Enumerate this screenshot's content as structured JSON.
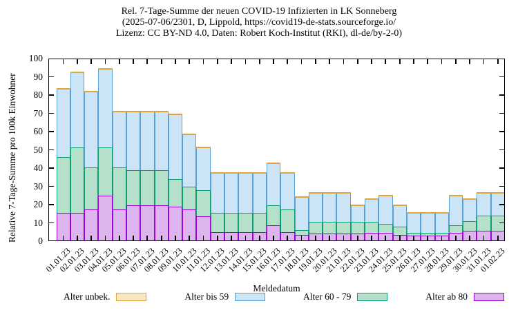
{
  "title": {
    "line1": "Rel. 7-Tage-Summe der neuen COVID-19 Infizierten in LK Sonneberg",
    "line2": "(2025-07-06/2301, D, Lippold, https://covid19-de-stats.sourceforge.io/",
    "line3": "Lizenz: CC BY-ND 4.0, Daten: Robert Koch-Institut (RKI), dl-de/by-2-0)"
  },
  "y_axis": {
    "label": "Relative 7-Tage-Summe pro 100k Einwohner",
    "min": 0,
    "max": 100,
    "tick_step": 10,
    "tick_labels": [
      "0",
      "10",
      "20",
      "30",
      "40",
      "50",
      "60",
      "70",
      "80",
      "90",
      "100"
    ]
  },
  "x_axis": {
    "label": "Meldedatum",
    "tick_labels": [
      "01.01.23",
      "02.01.23",
      "03.01.23",
      "04.01.23",
      "05.01.23",
      "06.01.23",
      "07.01.23",
      "08.01.23",
      "09.01.23",
      "10.01.23",
      "11.01.23",
      "12.01.23",
      "13.01.23",
      "14.01.23",
      "15.01.23",
      "16.01.23",
      "17.01.23",
      "18.01.23",
      "19.01.23",
      "20.01.23",
      "21.01.23",
      "22.01.23",
      "23.01.23",
      "24.01.23",
      "25.01.23",
      "26.01.23",
      "27.01.23",
      "28.01.23",
      "29.01.23",
      "30.01.23",
      "31.01.23",
      "01.02.23"
    ]
  },
  "legend": {
    "items": [
      {
        "label": "Alter unbek.",
        "fill": "#f9e7c2",
        "border": "#e2a33b"
      },
      {
        "label": "Alter bis 59",
        "fill": "#cbe4f6",
        "border": "#55a1d9"
      },
      {
        "label": "Alter 60 - 79",
        "fill": "#b5e0ca",
        "border": "#0b9e73"
      },
      {
        "label": "Alter ab 80",
        "fill": "#ddb5ee",
        "border": "#9804d1"
      }
    ]
  },
  "chart_data": {
    "type": "bar",
    "stacked": true,
    "title": "Rel. 7-Tage-Summe der neuen COVID-19 Infizierten in LK Sonneberg",
    "xlabel": "Meldedatum",
    "ylabel": "Relative 7-Tage-Summe pro 100k Einwohner",
    "ylim": [
      0,
      100
    ],
    "grid": false,
    "legend_position": "bottom",
    "note": "Values are cumulative stack tops per age group (per 100k inhabitants). 'Alter unbek.' is 0 every day and appears only as an orange line along the top edge of each total bar.",
    "categories": [
      "01.01.23",
      "02.01.23",
      "03.01.23",
      "04.01.23",
      "05.01.23",
      "06.01.23",
      "07.01.23",
      "08.01.23",
      "09.01.23",
      "10.01.23",
      "11.01.23",
      "12.01.23",
      "13.01.23",
      "14.01.23",
      "15.01.23",
      "16.01.23",
      "17.01.23",
      "18.01.23",
      "19.01.23",
      "20.01.23",
      "21.01.23",
      "22.01.23",
      "23.01.23",
      "24.01.23",
      "25.01.23",
      "26.01.23",
      "27.01.23",
      "28.01.23",
      "29.01.23",
      "30.01.23",
      "31.01.23",
      "01.02.23"
    ],
    "series": [
      {
        "name": "Alter ab 80",
        "fill": "#ddb5ee",
        "border": "#9804d1",
        "cumulative_top": [
          15.5,
          15.5,
          17.5,
          25,
          17.5,
          19.5,
          19.5,
          19.5,
          19,
          17.5,
          13.5,
          5,
          5,
          5,
          5,
          8.5,
          5,
          3.5,
          4,
          4,
          4,
          4,
          4.5,
          4.5,
          3.5,
          3,
          3,
          3,
          4.5,
          5.5,
          5.5,
          5.5
        ]
      },
      {
        "name": "Alter 60 - 79",
        "fill": "#b5e0ca",
        "border": "#0b9e73",
        "cumulative_top": [
          46,
          51.5,
          40.5,
          51.5,
          40.5,
          39,
          39,
          39,
          34,
          30,
          28,
          15.5,
          15.5,
          15.5,
          15.5,
          19.5,
          17.5,
          6,
          10.5,
          10.5,
          10.5,
          10.5,
          10.5,
          9.5,
          8,
          4.5,
          4.5,
          4.5,
          8.5,
          11,
          14,
          14
        ]
      },
      {
        "name": "Alter bis 59",
        "fill": "#cbe4f6",
        "border": "#55a1d9",
        "cumulative_top": [
          83.5,
          92.5,
          82,
          94.5,
          71,
          71,
          71,
          71,
          69.5,
          58.5,
          51.5,
          37.5,
          37.5,
          37.5,
          37.5,
          42.5,
          37.5,
          24,
          26.5,
          26.5,
          26.5,
          19.5,
          23,
          25,
          19.5,
          15.5,
          15.5,
          15.5,
          25,
          23,
          26.5,
          26.5
        ]
      },
      {
        "name": "Alter unbek.",
        "fill": "#f9e7c2",
        "border": "#e2a33b",
        "values_all_days": 0,
        "cumulative_top": [
          83.5,
          92.5,
          82,
          94.5,
          71,
          71,
          71,
          71,
          69.5,
          58.5,
          51.5,
          37.5,
          37.5,
          37.5,
          37.5,
          42.5,
          37.5,
          24,
          26.5,
          26.5,
          26.5,
          19.5,
          23,
          25,
          19.5,
          15.5,
          15.5,
          15.5,
          25,
          23,
          26.5,
          26.5
        ]
      }
    ]
  }
}
